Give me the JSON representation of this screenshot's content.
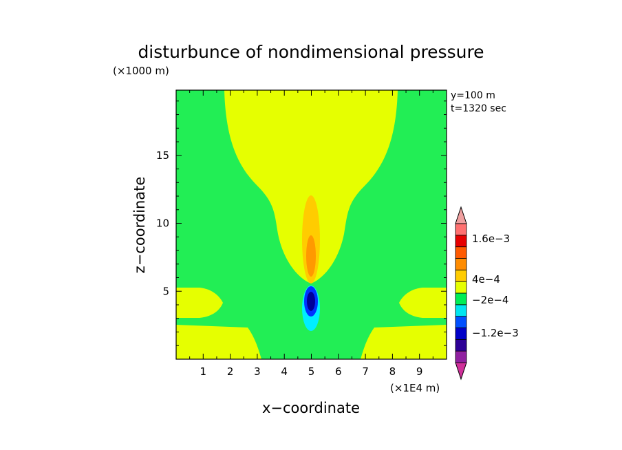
{
  "chart_data": {
    "type": "heatmap",
    "title": "disturbunce of nondimensional pressure",
    "yunit_label": "(×1000 m)",
    "xunit_label": "(×1E4 m)",
    "xlabel": "x−coordinate",
    "ylabel": "z−coordinate",
    "annotations": [
      "y=100 m",
      "t=1320 sec"
    ],
    "xlim": [
      0,
      10
    ],
    "ylim": [
      0,
      19.8
    ],
    "xticks": [
      "1",
      "2",
      "3",
      "4",
      "5",
      "6",
      "7",
      "8",
      "9"
    ],
    "yticks": [
      "5",
      "10",
      "15"
    ],
    "xtick_values": [
      1,
      2,
      3,
      4,
      5,
      6,
      7,
      8,
      9
    ],
    "ytick_values": [
      5,
      10,
      15
    ],
    "colorbar": {
      "labels": [
        "1.6e−3",
        "4e−4",
        "−2e−4",
        "−1.2e−3"
      ],
      "colors": [
        "#d0309a",
        "#9020a0",
        "#2d0096",
        "#0000c8",
        "#0050ff",
        "#00e6f0",
        "#00ee55",
        "#e6ff00",
        "#ffcc00",
        "#ff8c00",
        "#ff5a00",
        "#e60000",
        "#ff7070",
        "#f0a0a0"
      ]
    },
    "fields": [
      {
        "name": "background",
        "range": "-2e-4 to 2e-4",
        "color": "#22ee55"
      },
      {
        "name": "upper plume",
        "range": "2e-4 to 4e-4",
        "color": "#e6ff00"
      },
      {
        "name": "left lobe",
        "range": "2e-4 to 4e-4",
        "color": "#e6ff00"
      },
      {
        "name": "right lobe",
        "range": "2e-4 to 4e-4",
        "color": "#e6ff00"
      },
      {
        "name": "lower-left region",
        "range": "2e-4 to 4e-4",
        "color": "#e6ff00"
      },
      {
        "name": "lower-right region",
        "range": "2e-4 to 4e-4",
        "color": "#e6ff00"
      },
      {
        "name": "center positive core",
        "range": "4e-4 to 8e-4",
        "color": "#ffcc00"
      },
      {
        "name": "center strong core",
        "range": "8e-4 to 1.2e-3",
        "color": "#ff9900"
      },
      {
        "name": "lower negative core",
        "range": "-6e-4 to -2e-4",
        "color": "#00eeff"
      },
      {
        "name": "deep negative core",
        "range": "-1.2e-3 to -8e-4",
        "color": "#0033ff"
      },
      {
        "name": "deepest negative core",
        "range": "< -1.2e-3",
        "color": "#000099"
      }
    ]
  }
}
